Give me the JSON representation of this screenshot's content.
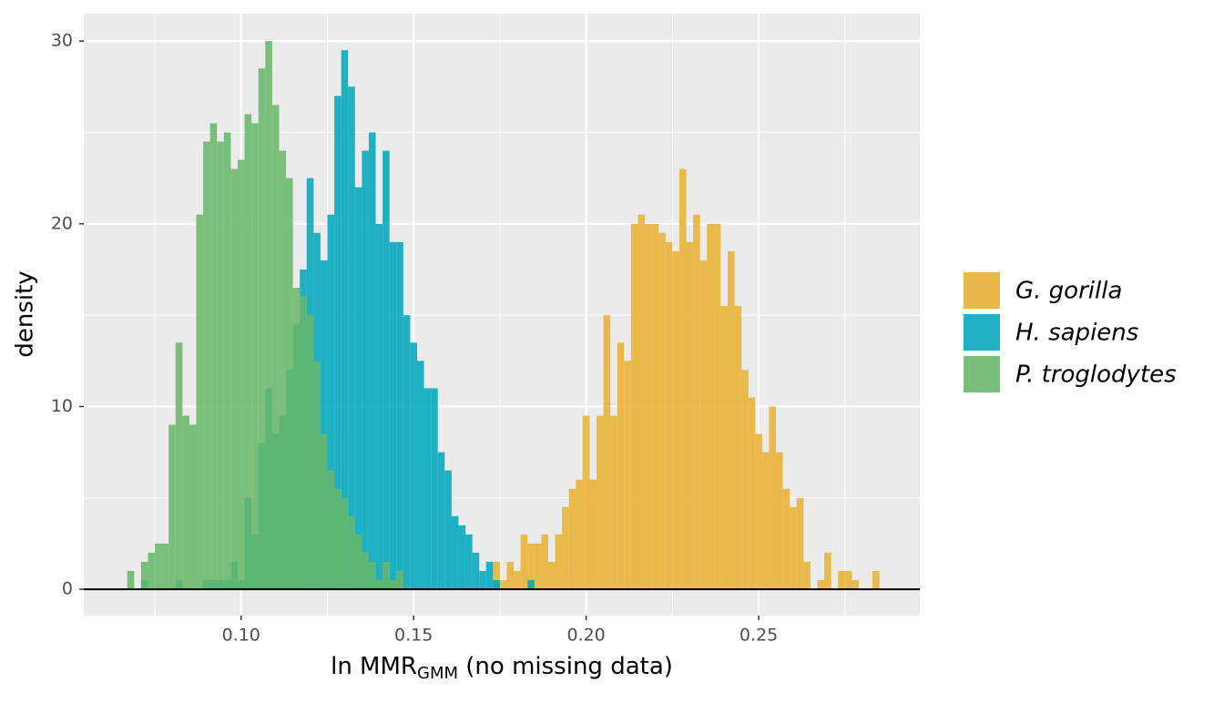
{
  "chart_data": {
    "type": "histogram",
    "x_label": {
      "main": "ln MMR",
      "sub": "GMM",
      "rest": " (no missing data)"
    },
    "y_label": "density",
    "xlim": [
      0.0544,
      0.2967
    ],
    "ylim": [
      -1.44,
      31.5
    ],
    "xticks": [
      {
        "value": 0.1,
        "label": "0.10"
      },
      0.15,
      {
        "value": 0.2,
        "label": "0.20"
      },
      0.25
    ],
    "yticks": [
      0,
      10,
      20,
      30
    ],
    "xminor": [
      0.075,
      0.125,
      0.175,
      0.225,
      0.275
    ],
    "yminor": [
      5,
      15,
      25
    ],
    "grid": true,
    "hline": 0,
    "alpha": 0.87,
    "legend": "right",
    "series": [
      {
        "name": "G. gorilla",
        "color": "#e8b133",
        "bins": [
          0.173,
          0.175,
          0.177,
          0.179,
          0.181,
          0.183,
          0.185,
          0.187,
          0.189,
          0.191,
          0.193,
          0.195,
          0.197,
          0.199,
          0.201,
          0.203,
          0.205,
          0.207,
          0.209,
          0.211,
          0.213,
          0.215,
          0.217,
          0.219,
          0.221,
          0.223,
          0.225,
          0.227,
          0.229,
          0.231,
          0.233,
          0.235,
          0.237,
          0.239,
          0.241,
          0.243,
          0.245,
          0.247,
          0.249,
          0.251,
          0.253,
          0.255,
          0.257,
          0.259,
          0.261,
          0.263,
          0.265,
          0.267,
          0.269,
          0.271,
          0.273,
          0.275,
          0.277,
          0.279,
          0.281,
          0.283,
          0.285
        ],
        "values": [
          1.5,
          0.5,
          1.5,
          1,
          3,
          2.5,
          2.5,
          3,
          1.5,
          3,
          4.5,
          5.5,
          6,
          9.5,
          6,
          9.5,
          15,
          9.5,
          13.5,
          12.5,
          20,
          20.5,
          20,
          20,
          19.5,
          19,
          18.5,
          23,
          19,
          20.5,
          18,
          20,
          20,
          15.5,
          18.5,
          15.5,
          12,
          10.5,
          8.5,
          7.5,
          10,
          7.5,
          5.5,
          4.5,
          5,
          1.5,
          0,
          0.5,
          2,
          0,
          1,
          1,
          0.5,
          0,
          0,
          1
        ]
      },
      {
        "name": "H. sapiens",
        "color": "#00a6bc",
        "bins": [
          0.071,
          0.073,
          0.075,
          0.077,
          0.079,
          0.081,
          0.083,
          0.085,
          0.087,
          0.089,
          0.091,
          0.093,
          0.095,
          0.097,
          0.099,
          0.101,
          0.103,
          0.105,
          0.107,
          0.109,
          0.111,
          0.113,
          0.115,
          0.117,
          0.119,
          0.121,
          0.123,
          0.125,
          0.127,
          0.129,
          0.131,
          0.133,
          0.135,
          0.137,
          0.139,
          0.141,
          0.143,
          0.145,
          0.147,
          0.149,
          0.151,
          0.153,
          0.155,
          0.157,
          0.159,
          0.161,
          0.163,
          0.165,
          0.167,
          0.169,
          0.171,
          0.173,
          0.175,
          0.177,
          0.179,
          0.181,
          0.183,
          0.185
        ],
        "values": [
          0.5,
          0,
          0,
          0,
          0,
          0.5,
          0,
          0,
          0,
          0.5,
          0.5,
          0.5,
          0.5,
          1.5,
          0.5,
          5,
          3,
          8,
          11,
          8.5,
          9.5,
          12,
          14.5,
          17.5,
          22.5,
          19.5,
          18,
          20.5,
          27,
          29.5,
          27.5,
          22,
          24,
          25,
          20,
          24,
          19,
          19,
          15,
          13.5,
          12.5,
          11,
          11,
          7.5,
          6.5,
          4,
          3.5,
          3,
          2,
          1,
          1.5,
          0.5,
          0,
          0,
          0,
          0,
          0.5
        ]
      },
      {
        "name": "P. troglodytes",
        "color": "#67b769",
        "bins": [
          0.067,
          0.069,
          0.071,
          0.073,
          0.075,
          0.077,
          0.079,
          0.081,
          0.083,
          0.085,
          0.087,
          0.089,
          0.091,
          0.093,
          0.095,
          0.097,
          0.099,
          0.101,
          0.103,
          0.105,
          0.107,
          0.109,
          0.111,
          0.113,
          0.115,
          0.117,
          0.119,
          0.121,
          0.123,
          0.125,
          0.127,
          0.129,
          0.131,
          0.133,
          0.135,
          0.137,
          0.139,
          0.141,
          0.143,
          0.145,
          0.147
        ],
        "values": [
          1,
          0,
          1.5,
          2,
          2.5,
          2.5,
          9,
          13.5,
          9.5,
          9,
          20.5,
          24.5,
          25.5,
          24.5,
          25,
          23,
          23.5,
          26,
          25.5,
          28.5,
          30,
          26.5,
          24,
          22.5,
          16.5,
          16,
          15,
          12.5,
          8.5,
          6.5,
          5.5,
          5,
          4,
          3,
          2,
          1.5,
          0.5,
          1.5,
          0.5,
          1
        ]
      }
    ]
  }
}
